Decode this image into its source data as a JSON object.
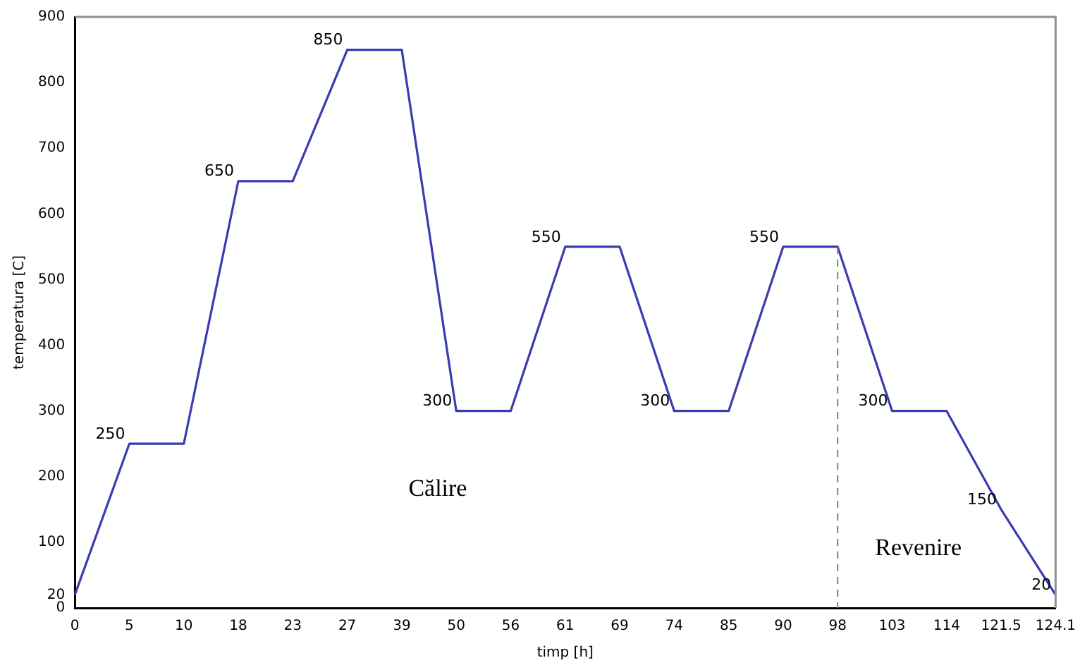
{
  "chart_data": {
    "type": "line",
    "xlabel": "timp [h]",
    "ylabel": "temperatura [C]",
    "categories": [
      "0",
      "5",
      "10",
      "18",
      "23",
      "27",
      "39",
      "50",
      "56",
      "61",
      "69",
      "74",
      "85",
      "90",
      "98",
      "103",
      "114",
      "121.5",
      "124.1"
    ],
    "series": [
      {
        "color": "#3a3ab4",
        "values": [
          20,
          250,
          250,
          650,
          650,
          850,
          850,
          300,
          300,
          550,
          550,
          300,
          300,
          550,
          550,
          300,
          300,
          150,
          20
        ],
        "value_labels": [
          null,
          "250",
          null,
          "650",
          null,
          "850",
          null,
          "300",
          null,
          "550",
          null,
          "300",
          null,
          "550",
          null,
          "300",
          null,
          "150",
          "20"
        ]
      }
    ],
    "ylim": [
      0,
      900
    ],
    "yticks": [
      0,
      20,
      100,
      200,
      300,
      400,
      500,
      600,
      700,
      800,
      900
    ],
    "ref_lines": [
      {
        "axis": "x",
        "value": "98",
        "color": "#808080",
        "line_style": "dashed"
      }
    ],
    "annotations": [
      "Călire",
      "Revenire"
    ],
    "grid": false,
    "legend": false,
    "marker": "none",
    "line_style": "solid"
  }
}
